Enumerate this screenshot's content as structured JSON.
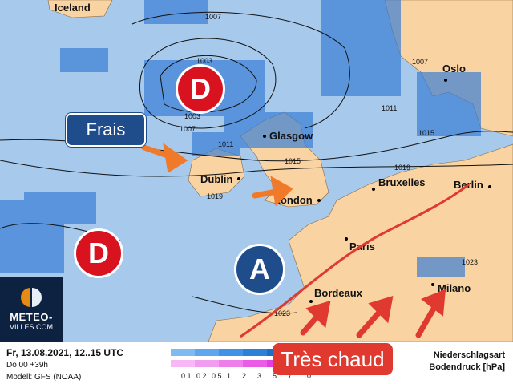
{
  "map": {
    "cities": [
      "Iceland",
      "Oslo",
      "Glasgow",
      "Dublin",
      "London",
      "Bruxelles",
      "Berlin",
      "Paris",
      "Bordeaux",
      "Milano"
    ],
    "isobars": [
      "1007",
      "1003",
      "1003",
      "1007",
      "1011",
      "1011",
      "1015",
      "1015",
      "1019",
      "1019",
      "1023",
      "1023",
      "1007"
    ],
    "pressure_systems": {
      "low1": "D",
      "low2": "D",
      "high": "A"
    },
    "colors": {
      "sea": "#a6c9ec",
      "land": "#f9d4a2",
      "precip": "#3a7fd6",
      "low": "#d9121f",
      "high": "#1f4d8c",
      "arrow": "#f07a2a",
      "warm_arrow": "#e03a30"
    }
  },
  "callouts": {
    "cold": "Frais",
    "hot": "Très chaud"
  },
  "logo": {
    "line1": "METEO-",
    "line2": "VILLES.COM"
  },
  "footer": {
    "date": "Fr, 13.08.2021, 12..15 UTC",
    "run": "Do 00 +39h",
    "model": "Modell: GFS (NOAA)",
    "legend_title1": "Niederschlagsart",
    "legend_title2": "Bodendruck [hPa]",
    "scale": [
      "0.1",
      "0.2",
      "0.5",
      "1",
      "2",
      "3",
      "5",
      "7",
      "10"
    ],
    "rain_colors": [
      "#7fbaf2",
      "#5ea6ee",
      "#3f93e6",
      "#2b80d8",
      "#1c6fc8",
      "#155fb3",
      "#0f4f9c"
    ],
    "snow_colors": [
      "#f7b8f5",
      "#f29cef",
      "#ee7eea",
      "#ea5ce6",
      "#e33ee0",
      "#d21ecf",
      "#b812b5"
    ]
  }
}
